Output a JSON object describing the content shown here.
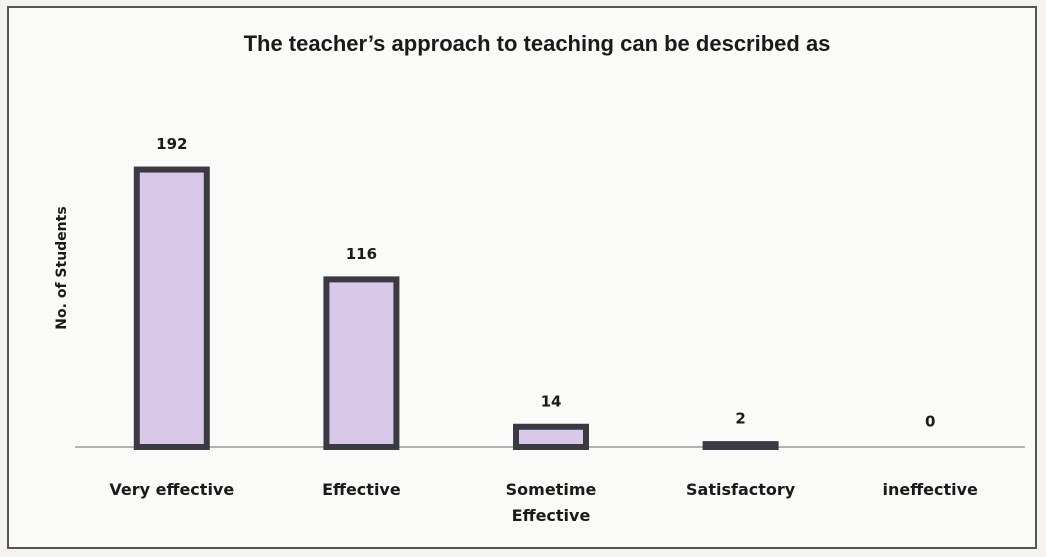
{
  "chart_data": {
    "type": "bar",
    "title": "The teacher’s approach to teaching can be described as",
    "y_label": "No. of Students",
    "categories": [
      "Very effective",
      "Effective",
      "Sometime Effective",
      "Satisfactory",
      "ineffective"
    ],
    "values": [
      192,
      116,
      14,
      2,
      0
    ],
    "color": "#d8c8ea",
    "edge_color": "#3b3942",
    "ylim": [
      0,
      200
    ]
  }
}
